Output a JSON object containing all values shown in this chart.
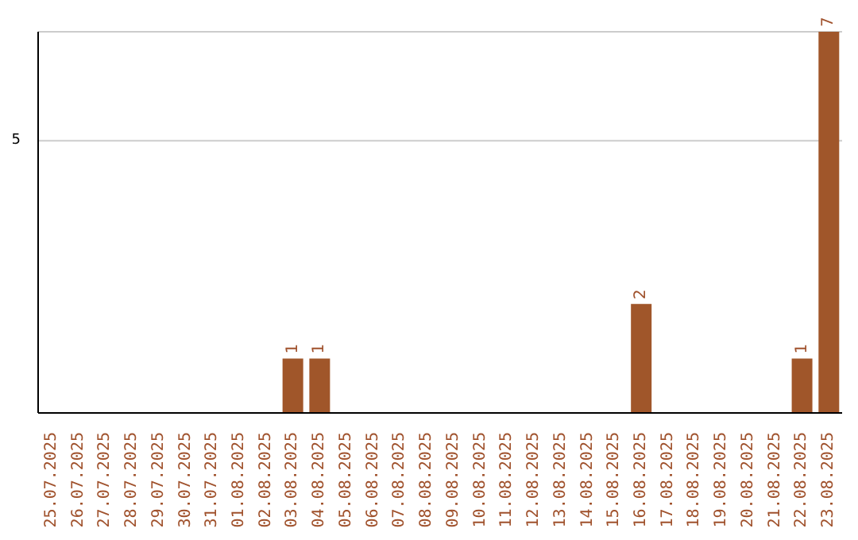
{
  "chart_data": {
    "type": "bar",
    "categories": [
      "25.07.2025",
      "26.07.2025",
      "27.07.2025",
      "28.07.2025",
      "29.07.2025",
      "30.07.2025",
      "31.07.2025",
      "01.08.2025",
      "02.08.2025",
      "03.08.2025",
      "04.08.2025",
      "05.08.2025",
      "06.08.2025",
      "07.08.2025",
      "08.08.2025",
      "09.08.2025",
      "10.08.2025",
      "11.08.2025",
      "12.08.2025",
      "13.08.2025",
      "14.08.2025",
      "15.08.2025",
      "16.08.2025",
      "17.08.2025",
      "18.08.2025",
      "19.08.2025",
      "20.08.2025",
      "21.08.2025",
      "22.08.2025",
      "23.08.2025"
    ],
    "values": [
      0,
      0,
      0,
      0,
      0,
      0,
      0,
      0,
      0,
      1,
      1,
      0,
      0,
      0,
      0,
      0,
      0,
      0,
      0,
      0,
      0,
      0,
      2,
      0,
      0,
      0,
      0,
      0,
      1,
      7
    ],
    "value_labels": [
      null,
      null,
      null,
      null,
      null,
      null,
      null,
      null,
      null,
      "1",
      "1",
      null,
      null,
      null,
      null,
      null,
      null,
      null,
      null,
      null,
      null,
      null,
      "2",
      null,
      null,
      null,
      null,
      null,
      "1",
      "7"
    ],
    "color": "#a0562a",
    "ylim": [
      0,
      7
    ],
    "yticks": [
      5
    ],
    "grid": "y"
  }
}
